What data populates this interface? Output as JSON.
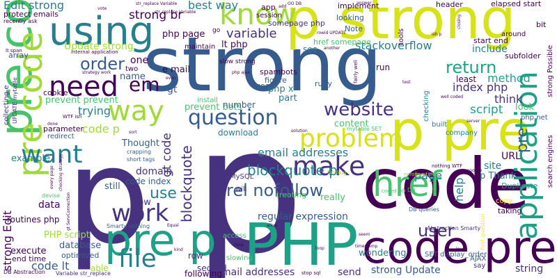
{
  "colors": {
    "dark_purple": "#440154",
    "indigo": "#46327e",
    "blue": "#365c8d",
    "teal_blue": "#277f8e",
    "teal": "#1fa187",
    "green": "#4ac16d",
    "light_green": "#a0da39",
    "yellow": "#d8e219",
    "bright_yellow": "#fde725"
  },
  "words": [
    {
      "id": "strong-large",
      "text": "strong"
    },
    {
      "id": "p-giant",
      "text": "p"
    },
    {
      "id": "p-left",
      "text": "p"
    },
    {
      "id": "code-right",
      "text": "code"
    },
    {
      "id": "PHP",
      "text": "PHP"
    },
    {
      "id": "p-strong-top",
      "text": "p strong"
    },
    {
      "id": "pre-code-vertical",
      "text": "pre code"
    },
    {
      "id": "p-pre",
      "text": "p pre"
    },
    {
      "id": "pre-code-left-vertical",
      "text": "pre code"
    },
    {
      "id": "code-pre",
      "text": "code pre"
    },
    {
      "id": "pre-p",
      "text": "pre p"
    },
    {
      "id": "application",
      "text": "application"
    },
    {
      "id": "href",
      "text": "href"
    },
    {
      "id": "using",
      "text": "using"
    },
    {
      "id": "need",
      "text": "need"
    },
    {
      "id": "way",
      "text": "way"
    },
    {
      "id": "know",
      "text": "know"
    },
    {
      "id": "question",
      "text": "question"
    },
    {
      "id": "problem",
      "text": "problem"
    },
    {
      "id": "want",
      "text": "want"
    },
    {
      "id": "make",
      "text": "make"
    },
    {
      "id": "work",
      "text": "work"
    },
    {
      "id": "file",
      "text": "file"
    },
    {
      "id": "rel-nofollow",
      "text": "rel nofollow"
    },
    {
      "id": "website",
      "text": "website"
    },
    {
      "id": "return",
      "text": "return"
    },
    {
      "id": "blockquote-p",
      "text": "blockquote p"
    },
    {
      "id": "strong-edit",
      "text": "strong Edit"
    },
    {
      "id": "blockquote",
      "text": "blockquote"
    },
    {
      "id": "user",
      "text": "user"
    },
    {
      "id": "em",
      "text": "em"
    },
    {
      "id": "order",
      "text": "order"
    },
    {
      "id": "use",
      "text": "use"
    },
    {
      "id": "method",
      "text": "method"
    },
    {
      "id": "edit-strong",
      "text": "Edit strong"
    },
    {
      "id": "best-way",
      "text": "best way"
    },
    {
      "id": "stackoverflow",
      "text": "stackoverflow"
    },
    {
      "id": "variable",
      "text": "variable"
    },
    {
      "id": "script",
      "text": "script"
    },
    {
      "id": "strong-br",
      "text": "strong br"
    },
    {
      "id": "index-php",
      "text": "index php"
    },
    {
      "id": "think",
      "text": "think"
    },
    {
      "id": "page",
      "text": "page"
    },
    {
      "id": "help",
      "text": "help"
    },
    {
      "id": "code-lt",
      "text": "code lt"
    },
    {
      "id": "pre-right",
      "text": "pre"
    },
    {
      "id": "code-p",
      "text": "code p"
    },
    {
      "id": "email-addresses",
      "text": "email addresses"
    },
    {
      "id": "regular-expression",
      "text": "regular expression"
    },
    {
      "id": "strong-update",
      "text": "strong Update"
    },
    {
      "id": "mail-addresses",
      "text": "mail addresses"
    },
    {
      "id": "trying",
      "text": "trying"
    },
    {
      "id": "update-strong",
      "text": "Update strong"
    },
    {
      "id": "gt-code",
      "text": "gt code"
    },
    {
      "id": "sql-injection",
      "text": "sql injection"
    },
    {
      "id": "domain",
      "text": "domain"
    },
    {
      "id": "data",
      "text": "data"
    },
    {
      "id": "string",
      "text": "string"
    },
    {
      "id": "URL",
      "text": "URL"
    },
    {
      "id": "site",
      "text": "site"
    },
    {
      "id": "content",
      "text": "content"
    },
    {
      "id": "example",
      "text": "example"
    },
    {
      "id": "p-thank",
      "text": "p Thank"
    },
    {
      "id": "wondering",
      "text": "wondering"
    },
    {
      "id": "php-page",
      "text": "php page"
    },
    {
      "id": "lt-php",
      "text": "lt php"
    },
    {
      "id": "one",
      "text": "one"
    },
    {
      "id": "gt",
      "text": "gt"
    },
    {
      "id": "e-mail",
      "text": "e mail"
    },
    {
      "id": "name",
      "text": "name"
    },
    {
      "id": "part",
      "text": "part"
    },
    {
      "id": "php-x",
      "text": "php x"
    },
    {
      "id": "include",
      "text": "include"
    },
    {
      "id": "look",
      "text": "look"
    },
    {
      "id": "prevent-prevent",
      "text": "prevent prevent"
    },
    {
      "id": "prevent-bots",
      "text": "prevent bots"
    },
    {
      "id": "thought",
      "text": "Thought"
    },
    {
      "id": "really",
      "text": "really"
    },
    {
      "id": "still",
      "text": "still"
    },
    {
      "id": "now",
      "text": "now"
    },
    {
      "id": "database",
      "text": "database"
    },
    {
      "id": "php-script",
      "text": "PHP script"
    },
    {
      "id": "execute",
      "text": "execute"
    },
    {
      "id": "routines-php",
      "text": "routines php"
    },
    {
      "id": "code-index",
      "text": "code index"
    },
    {
      "id": "send",
      "text": "send"
    },
    {
      "id": "second",
      "text": "second"
    },
    {
      "id": "following",
      "text": "following"
    },
    {
      "id": "row",
      "text": "row"
    },
    {
      "id": "able",
      "text": "able"
    },
    {
      "id": "end-time",
      "text": "end time"
    },
    {
      "id": "optimized",
      "text": "optimized"
    },
    {
      "id": "download",
      "text": "download"
    },
    {
      "id": "number",
      "text": "number"
    },
    {
      "id": "creating",
      "text": "creating"
    },
    {
      "id": "run",
      "text": "run"
    },
    {
      "id": "ruby",
      "text": "ruby"
    },
    {
      "id": "figure",
      "text": "figure"
    },
    {
      "id": "good",
      "text": "good"
    },
    {
      "id": "spambots",
      "text": "spambots"
    },
    {
      "id": "slow-strong",
      "text": "slow strong"
    },
    {
      "id": "someone",
      "text": "somepage php"
    },
    {
      "id": "href-somepage",
      "text": "href somepage"
    },
    {
      "id": "see",
      "text": "see"
    },
    {
      "id": "note",
      "text": "Note"
    },
    {
      "id": "looking",
      "text": "looking"
    },
    {
      "id": "least",
      "text": "least"
    },
    {
      "id": "start-end",
      "text": "start end"
    },
    {
      "id": "subfolder",
      "text": "subfolder"
    },
    {
      "id": "elapsed-start",
      "text": "elapsed start"
    },
    {
      "id": "header",
      "text": "header"
    },
    {
      "id": "implement",
      "text": "implement"
    },
    {
      "id": "session",
      "text": "session"
    },
    {
      "id": "app",
      "text": "app"
    },
    {
      "id": "protect-emails",
      "text": "protect emails"
    },
    {
      "id": "recently-ask",
      "text": "recently ask"
    },
    {
      "id": "array",
      "text": "array"
    },
    {
      "id": "cookie",
      "text": "cookie"
    },
    {
      "id": "parameter",
      "text": "parameter"
    },
    {
      "id": "redirect",
      "text": "redirect"
    },
    {
      "id": "maintain",
      "text": "maintain"
    },
    {
      "id": "install",
      "text": "install"
    },
    {
      "id": "access",
      "text": "access"
    },
    {
      "id": "slowing",
      "text": "slowing"
    },
    {
      "id": "duplicate",
      "text": "Duplicate"
    },
    {
      "id": "copy",
      "text": "copy"
    },
    {
      "id": "taking",
      "text": "taking"
    },
    {
      "id": "say",
      "text": "say"
    },
    {
      "id": "set-display-order",
      "text": "SET display_order"
    },
    {
      "id": "ajax",
      "text": "AJAX"
    },
    {
      "id": "around",
      "text": "around"
    },
    {
      "id": "bit",
      "text": "bit"
    },
    {
      "id": "php-net",
      "text": "php net"
    },
    {
      "id": "built",
      "text": "built"
    },
    {
      "id": "company",
      "text": "company"
    },
    {
      "id": "checking",
      "text": "checking"
    },
    {
      "id": "tools",
      "text": "tools"
    },
    {
      "id": "strong-possible",
      "text": "strong Possible"
    },
    {
      "id": "search-engines",
      "text": "search engines"
    },
    {
      "id": "mysql",
      "text": "MySQL"
    },
    {
      "id": "will",
      "text": "will"
    },
    {
      "id": "two",
      "text": "two"
    },
    {
      "id": "db-abstraction",
      "text": "DB Abstraction"
    },
    {
      "id": "variable-str-replace",
      "text": "Variable str_replace"
    },
    {
      "id": "smarty-nothing",
      "text": "Smarty nothing"
    },
    {
      "id": "db-queries",
      "text": "DB queries"
    },
    {
      "id": "abstraction-smarty",
      "text": "Abstraction Smarty"
    },
    {
      "id": "crapping",
      "text": "crapping"
    },
    {
      "id": "short-tags",
      "text": "short tags"
    },
    {
      "id": "collecting-e",
      "text": "collecting e"
    },
    {
      "id": "update-mytable",
      "text": "UPDATE mytable"
    },
    {
      "id": "internal-application",
      "text": "internal application"
    },
    {
      "id": "strategy-work",
      "text": "strategy work"
    },
    {
      "id": "wtf-ish",
      "text": "WTF ish"
    },
    {
      "id": "nothing-wtf",
      "text": "nothing WTF"
    },
    {
      "id": "mytable-set",
      "text": "mytable SET"
    },
    {
      "id": "lt-span",
      "text": "lt span"
    },
    {
      "id": "go",
      "text": "go"
    },
    {
      "id": "DB",
      "text": "DB"
    },
    {
      "id": "coded",
      "text": "coded OO"
    },
    {
      "id": "finding",
      "text": "finding"
    },
    {
      "id": "nofollow-title",
      "text": "nofollow title"
    },
    {
      "id": "devise",
      "text": "devise"
    },
    {
      "id": "fairly-well",
      "text": "fairly well"
    },
    {
      "id": "first-question",
      "text": "first question"
    },
    {
      "id": "solution",
      "text": "solution"
    },
    {
      "id": "str-replace-variable",
      "text": "str_replace Variable"
    },
    {
      "id": "stop-sql",
      "text": "stop sql"
    },
    {
      "id": "done",
      "text": "done"
    },
    {
      "id": "php-ajax",
      "text": "php ajax"
    },
    {
      "id": "sort",
      "text": "sort"
    },
    {
      "id": "server",
      "text": "server"
    },
    {
      "id": "response",
      "text": "response"
    },
    {
      "id": "level",
      "text": "level"
    },
    {
      "id": "loop",
      "text": "loop"
    },
    {
      "id": "class",
      "text": "class"
    },
    {
      "id": "kind",
      "text": "kind"
    },
    {
      "id": "equal",
      "text": "Equal"
    },
    {
      "id": "answer",
      "text": "answer"
    },
    {
      "id": "try",
      "text": "try"
    },
    {
      "id": "allow",
      "text": "allow"
    },
    {
      "id": "closing",
      "text": "closing"
    },
    {
      "id": "another",
      "text": "another"
    },
    {
      "id": "every-page",
      "text": "every page"
    },
    {
      "id": "checking-strategy",
      "text": "checking strategy"
    },
    {
      "id": "gt-servconnection",
      "text": "gt ServConnection"
    },
    {
      "id": "vote",
      "text": "vote"
    },
    {
      "id": "well-coded",
      "text": "well coded"
    },
    {
      "id": "test",
      "text": "test"
    },
    {
      "id": "seem",
      "text": "seem"
    },
    {
      "id": "timestamp",
      "text": "timestamp"
    },
    {
      "id": "str-replace-variable-top",
      "text": "str_replace Variable"
    },
    {
      "id": "rowid-update",
      "text": "rowid UPDATE"
    },
    {
      "id": "ish-p",
      "text": "ish p"
    },
    {
      "id": "even",
      "text": "even"
    },
    {
      "id": "add",
      "text": "add"
    },
    {
      "id": "oo-db",
      "text": "OO DB"
    }
  ]
}
